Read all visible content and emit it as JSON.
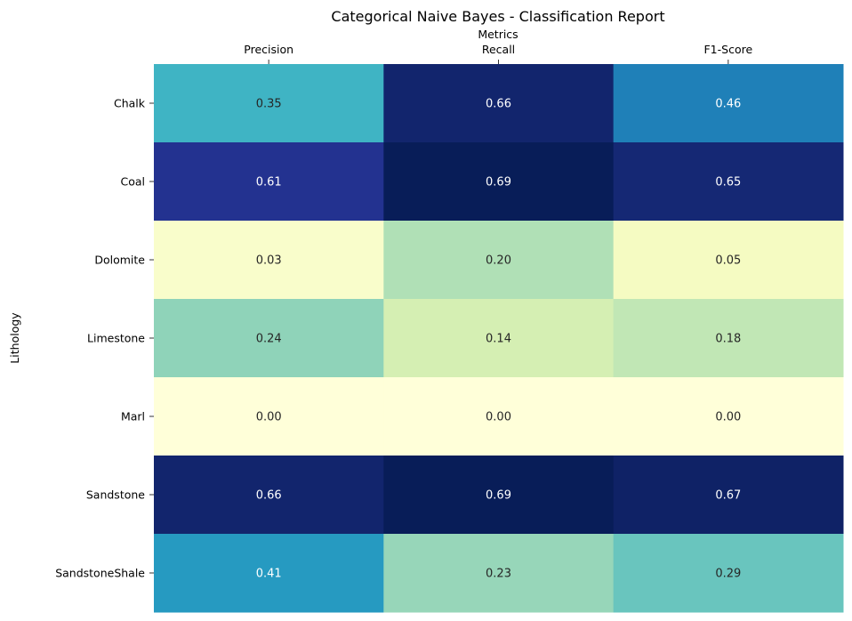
{
  "chart_data": {
    "type": "heatmap",
    "title": "Categorical Naive Bayes - Classification Report",
    "xlabel": "Metrics",
    "ylabel": "Lithology",
    "x_axis_position": "top",
    "colorbar": false,
    "colormap": "YlGnBu",
    "value_range": [
      0.0,
      0.69
    ],
    "columns": [
      "Precision",
      "Recall",
      "F1-Score"
    ],
    "rows": [
      "Chalk",
      "Coal",
      "Dolomite",
      "Limestone",
      "Marl",
      "Sandstone",
      "SandstoneShale"
    ],
    "values": [
      [
        0.35,
        0.66,
        0.46
      ],
      [
        0.61,
        0.69,
        0.65
      ],
      [
        0.03,
        0.2,
        0.05
      ],
      [
        0.24,
        0.14,
        0.18
      ],
      [
        0.0,
        0.0,
        0.0
      ],
      [
        0.66,
        0.69,
        0.67
      ],
      [
        0.41,
        0.23,
        0.29
      ]
    ],
    "labels": [
      [
        "0.35",
        "0.66",
        "0.46"
      ],
      [
        "0.61",
        "0.69",
        "0.65"
      ],
      [
        "0.03",
        "0.20",
        "0.05"
      ],
      [
        "0.24",
        "0.14",
        "0.18"
      ],
      [
        "0.00",
        "0.00",
        "0.00"
      ],
      [
        "0.66",
        "0.69",
        "0.67"
      ],
      [
        "0.41",
        "0.23",
        "0.29"
      ]
    ]
  }
}
